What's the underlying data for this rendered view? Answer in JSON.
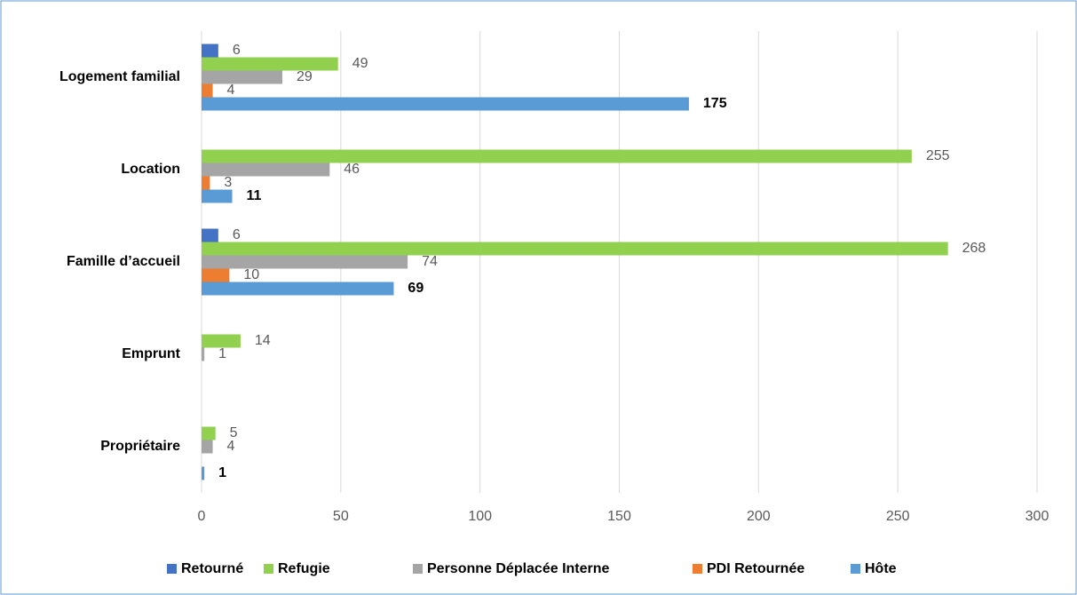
{
  "chart_data": {
    "type": "bar",
    "orientation": "horizontal",
    "categories": [
      "Logement familial",
      "Location",
      "Famille d’accueil",
      "Emprunt",
      "Propriétaire"
    ],
    "series": [
      {
        "name": "Retourné",
        "color": "#4472c4",
        "values": [
          6,
          null,
          6,
          null,
          null
        ]
      },
      {
        "name": "Refugie",
        "color": "#92d050",
        "values": [
          49,
          255,
          268,
          14,
          5
        ]
      },
      {
        "name": "Personne Déplacée Interne",
        "color": "#a5a5a5",
        "values": [
          29,
          46,
          74,
          1,
          4
        ]
      },
      {
        "name": "PDI Retournée",
        "color": "#ed7d31",
        "values": [
          4,
          3,
          10,
          null,
          null
        ]
      },
      {
        "name": "Hôte",
        "color": "#5b9bd5",
        "values": [
          175,
          11,
          69,
          null,
          1
        ],
        "label_weight": "bold"
      }
    ],
    "xlim": [
      0,
      300
    ],
    "xticks": [
      0,
      50,
      100,
      150,
      200,
      250,
      300
    ],
    "grid": true,
    "legend": "bottom"
  }
}
